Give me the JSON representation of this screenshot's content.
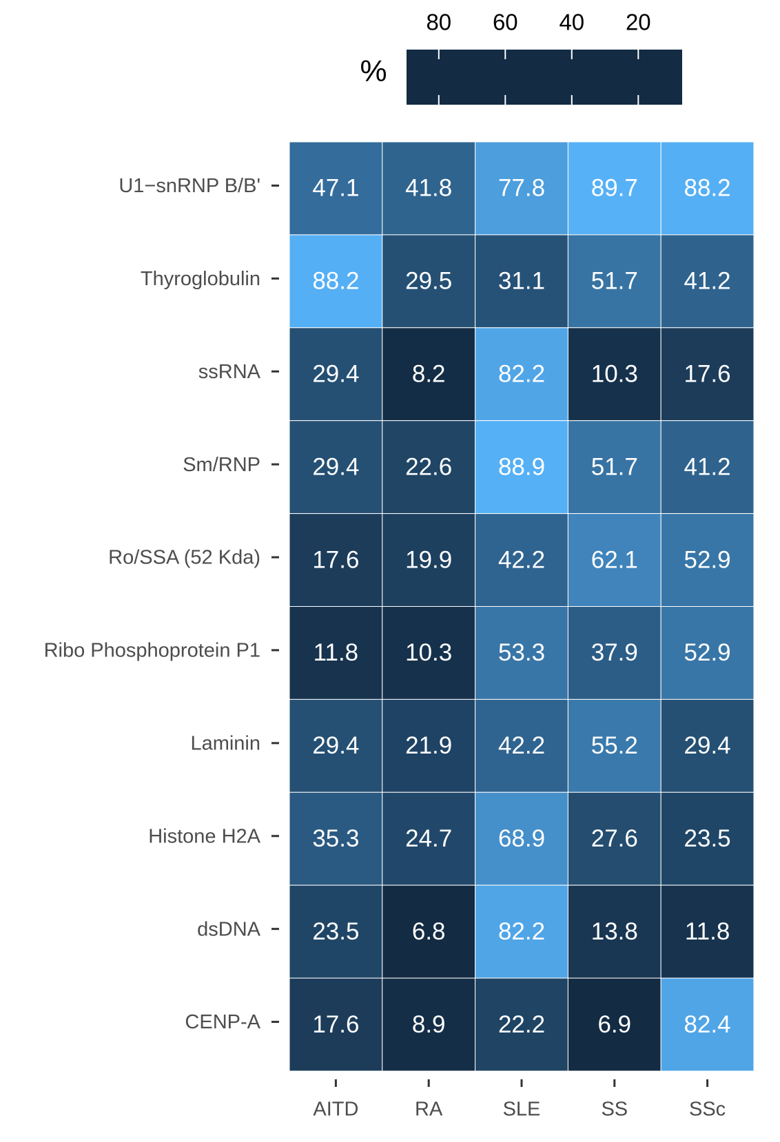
{
  "chart_data": {
    "type": "heatmap",
    "x_categories": [
      "AITD",
      "RA",
      "SLE",
      "SS",
      "SSc"
    ],
    "y_categories": [
      "U1−snRNP B/B'",
      "Thyroglobulin",
      "ssRNA",
      "Sm/RNP",
      "Ro/SSA (52 Kda)",
      "Ribo Phosphoprotein P1",
      "Laminin",
      "Histone H2A",
      "dsDNA",
      "CENP-A"
    ],
    "values": [
      [
        47.1,
        41.8,
        77.8,
        89.7,
        88.2
      ],
      [
        88.2,
        29.5,
        31.1,
        51.7,
        41.2
      ],
      [
        29.4,
        8.2,
        82.2,
        10.3,
        17.6
      ],
      [
        29.4,
        22.6,
        88.9,
        51.7,
        41.2
      ],
      [
        17.6,
        19.9,
        42.2,
        62.1,
        52.9
      ],
      [
        11.8,
        10.3,
        53.3,
        37.9,
        52.9
      ],
      [
        29.4,
        21.9,
        42.2,
        55.2,
        29.4
      ],
      [
        35.3,
        24.7,
        68.9,
        27.6,
        23.5
      ],
      [
        23.5,
        6.8,
        82.2,
        13.8,
        11.8
      ],
      [
        17.6,
        8.9,
        22.2,
        6.9,
        82.4
      ]
    ],
    "colorbar": {
      "title": "%",
      "lim": [
        6.8,
        89.7
      ],
      "ticks": [
        80,
        60,
        40,
        20
      ],
      "colors": [
        "#132B43",
        "#56B1F7"
      ],
      "reversed": true
    }
  }
}
